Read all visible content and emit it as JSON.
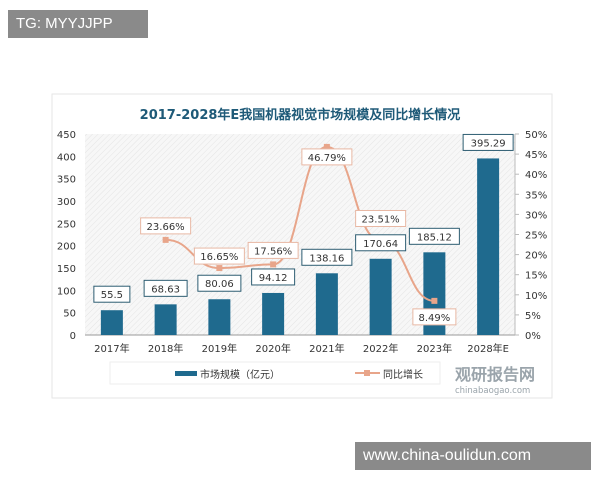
{
  "overlay": {
    "top_left_tag": "TG: MYYJJPP",
    "bottom_right_tag": "www.china-oulidun.com"
  },
  "watermark": {
    "logo": "观研报告网",
    "domain": "chinabaogao.com"
  },
  "chart_data": {
    "type": "bar+line",
    "title": "2017-2028年E我国机器视觉市场规模及同比增长情况",
    "categories": [
      "2017年",
      "2018年",
      "2019年",
      "2020年",
      "2021年",
      "2022年",
      "2023年",
      "2028年E"
    ],
    "series": [
      {
        "name": "市场规模（亿元）",
        "type": "bar",
        "axis": "left",
        "color": "#1f6a8e",
        "values": [
          55.5,
          68.63,
          80.06,
          94.12,
          138.16,
          170.64,
          185.12,
          395.29
        ],
        "labels": [
          "55.5",
          "68.63",
          "80.06",
          "94.12",
          "138.16",
          "170.64",
          "185.12",
          "395.29"
        ]
      },
      {
        "name": "同比增长",
        "type": "line",
        "axis": "right",
        "color": "#e8a58a",
        "values": [
          null,
          23.66,
          16.65,
          17.56,
          46.79,
          23.51,
          8.49,
          null
        ],
        "labels": [
          "",
          "23.66%",
          "16.65%",
          "17.56%",
          "46.79%",
          "23.51%",
          "8.49%",
          ""
        ]
      }
    ],
    "left_axis": {
      "ylim": [
        0,
        450
      ],
      "ticks": [
        "0",
        "50",
        "100",
        "150",
        "200",
        "250",
        "300",
        "350",
        "400",
        "450"
      ]
    },
    "right_axis": {
      "ylim": [
        0,
        50
      ],
      "ticks": [
        "0%",
        "5%",
        "10%",
        "15%",
        "20%",
        "25%",
        "30%",
        "35%",
        "40%",
        "45%",
        "50%"
      ]
    },
    "legend": {
      "position": "bottom"
    }
  }
}
